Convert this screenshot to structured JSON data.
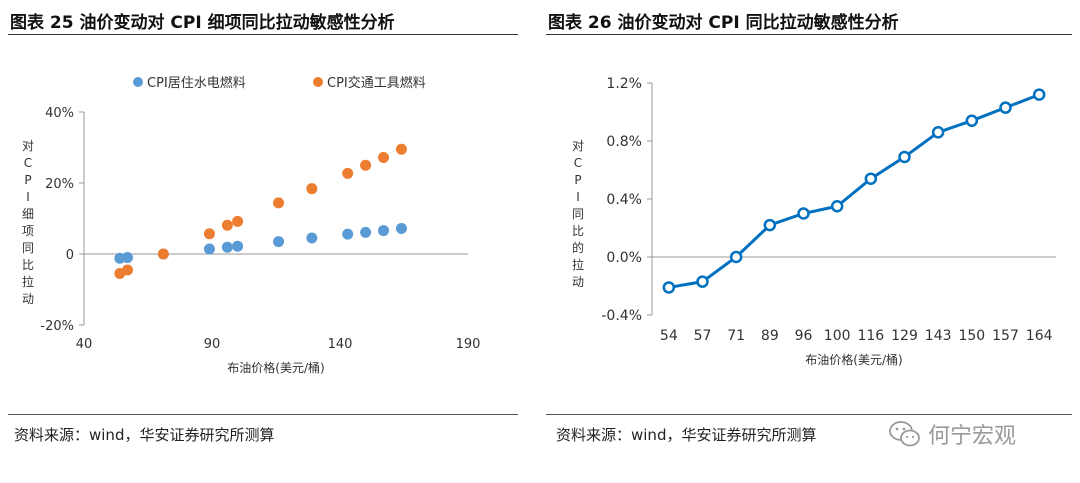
{
  "left_panel": {
    "title": "图表 25 油价变动对 CPI 细项同比拉动敏感性分析",
    "source": "资料来源：wind，华安证券研究所测算"
  },
  "right_panel": {
    "title": "图表 26 油价变动对 CPI 同比拉动敏感性分析",
    "source": "资料来源：wind，华安证券研究所测算"
  },
  "watermark": {
    "text": "何宁宏观",
    "icon": "wechat-icon"
  },
  "chart_data": [
    {
      "type": "scatter",
      "title": "图表 25 油价变动对 CPI 细项同比拉动敏感性分析",
      "xlabel": "布油价格(美元/桶)",
      "ylabel": "对CPI细项同比拉动",
      "xlim": [
        40,
        190
      ],
      "ylim": [
        -20,
        40
      ],
      "x_ticks": [
        40,
        90,
        140,
        190
      ],
      "y_ticks": [
        -20,
        0,
        20,
        40
      ],
      "y_tick_labels": [
        "-20%",
        "0",
        "20%",
        "40%"
      ],
      "legend_position": "top",
      "grid": false,
      "series": [
        {
          "name": "CPI居住水电燃料",
          "color": "#5B9BD5",
          "x": [
            54,
            57,
            71,
            89,
            96,
            100,
            116,
            129,
            143,
            150,
            157,
            164
          ],
          "y": [
            -1.2,
            -1.0,
            0.0,
            1.4,
            1.9,
            2.2,
            3.5,
            4.5,
            5.6,
            6.1,
            6.6,
            7.2
          ]
        },
        {
          "name": "CPI交通工具燃料",
          "color": "#ED7D31",
          "x": [
            54,
            57,
            71,
            89,
            96,
            100,
            116,
            129,
            143,
            150,
            157,
            164
          ],
          "y": [
            -5.5,
            -4.5,
            0.0,
            5.7,
            8.1,
            9.2,
            14.4,
            18.4,
            22.7,
            25.0,
            27.2,
            29.5
          ]
        }
      ]
    },
    {
      "type": "line",
      "title": "图表 26 油价变动对 CPI 同比拉动敏感性分析",
      "xlabel": "布油价格(美元/桶)",
      "ylabel": "对CPI同比的拉动",
      "categories": [
        "54",
        "57",
        "71",
        "89",
        "96",
        "100",
        "116",
        "129",
        "143",
        "150",
        "157",
        "164"
      ],
      "ylim": [
        -0.4,
        1.2
      ],
      "y_ticks": [
        -0.4,
        0.0,
        0.4,
        0.8,
        1.2
      ],
      "y_tick_labels": [
        "-0.4%",
        "0.0%",
        "0.4%",
        "0.8%",
        "1.2%"
      ],
      "grid": false,
      "color": "#0070C0",
      "values": [
        -0.21,
        -0.17,
        0.0,
        0.22,
        0.3,
        0.35,
        0.54,
        0.69,
        0.86,
        0.94,
        1.03,
        1.12
      ]
    }
  ]
}
